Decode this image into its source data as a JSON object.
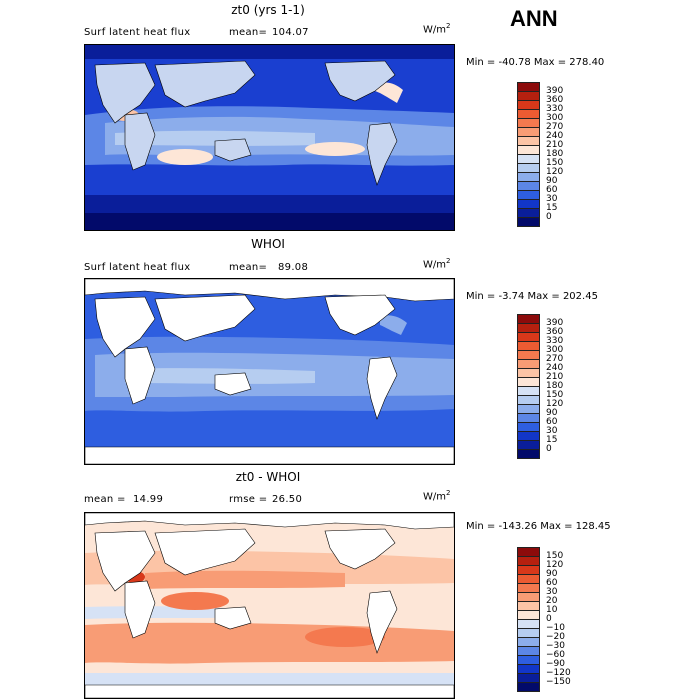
{
  "season": "ANN",
  "units_base": "W/m",
  "units_exp": "2",
  "panels": [
    {
      "title": "zt0 (yrs 1-1)",
      "left_label": "Surf latent heat flux",
      "stat_label": "mean=",
      "stat_value": "104.07",
      "minmax": "Min = -40.78 Max = 278.40",
      "colorbar_levels": [
        "390",
        "360",
        "330",
        "300",
        "270",
        "240",
        "210",
        "180",
        "150",
        "120",
        "90",
        "60",
        "30",
        "15",
        "0"
      ],
      "colorbar_colors": [
        "#8c0b0b",
        "#b5200f",
        "#d8381a",
        "#ec5b32",
        "#f4794f",
        "#f89c75",
        "#fcc4a6",
        "#fde6d7",
        "#d6e2f5",
        "#b6cdf0",
        "#8cadeb",
        "#5c86e6",
        "#2e5ee0",
        "#1236c8",
        "#0a1e9a",
        "#020a6a"
      ]
    },
    {
      "title": "WHOI",
      "left_label": "Surf latent heat flux",
      "stat_label": "mean=",
      "stat_value": "89.08",
      "minmax": "Min = -3.74 Max = 202.45",
      "colorbar_levels": [
        "390",
        "360",
        "330",
        "300",
        "270",
        "240",
        "210",
        "180",
        "150",
        "120",
        "90",
        "60",
        "30",
        "15",
        "0"
      ],
      "colorbar_colors": [
        "#8c0b0b",
        "#b5200f",
        "#d8381a",
        "#ec5b32",
        "#f4794f",
        "#f89c75",
        "#fcc4a6",
        "#fde6d7",
        "#d6e2f5",
        "#b6cdf0",
        "#8cadeb",
        "#5c86e6",
        "#2e5ee0",
        "#1236c8",
        "#0a1e9a",
        "#020a6a"
      ]
    },
    {
      "title": "zt0 - WHOI",
      "left_label": "mean =",
      "left_value": "14.99",
      "stat_label": "rmse =",
      "stat_value": "26.50",
      "minmax": "Min = -143.26 Max = 128.45",
      "colorbar_levels": [
        "150",
        "120",
        "90",
        "60",
        "30",
        "20",
        "10",
        "0",
        "−10",
        "−20",
        "−30",
        "−60",
        "−90",
        "−120",
        "−150"
      ],
      "colorbar_colors": [
        "#8c0b0b",
        "#b5200f",
        "#d8381a",
        "#ec5b32",
        "#f4794f",
        "#f89c75",
        "#fcc4a6",
        "#fde6d7",
        "#d6e2f5",
        "#b6cdf0",
        "#8cadeb",
        "#5c86e6",
        "#2e5ee0",
        "#1236c8",
        "#0a1e9a",
        "#020a6a"
      ]
    }
  ],
  "colors": {
    "land": "#ffffff",
    "coast": "#000000"
  },
  "chart_data": [
    {
      "type": "heatmap",
      "title": "zt0 (yrs 1-1)",
      "variable": "Surf latent heat flux",
      "units": "W/m2",
      "mean": 104.07,
      "min": -40.78,
      "max": 278.4,
      "levels": [
        0,
        15,
        30,
        60,
        90,
        120,
        150,
        180,
        210,
        240,
        270,
        300,
        330,
        360,
        390
      ]
    },
    {
      "type": "heatmap",
      "title": "WHOI",
      "variable": "Surf latent heat flux",
      "units": "W/m2",
      "mean": 89.08,
      "min": -3.74,
      "max": 202.45,
      "levels": [
        0,
        15,
        30,
        60,
        90,
        120,
        150,
        180,
        210,
        240,
        270,
        300,
        330,
        360,
        390
      ]
    },
    {
      "type": "heatmap",
      "title": "zt0 - WHOI",
      "units": "W/m2",
      "mean": 14.99,
      "rmse": 26.5,
      "min": -143.26,
      "max": 128.45,
      "levels": [
        -150,
        -120,
        -90,
        -60,
        -30,
        -20,
        -10,
        0,
        10,
        20,
        30,
        60,
        90,
        120,
        150
      ]
    }
  ]
}
